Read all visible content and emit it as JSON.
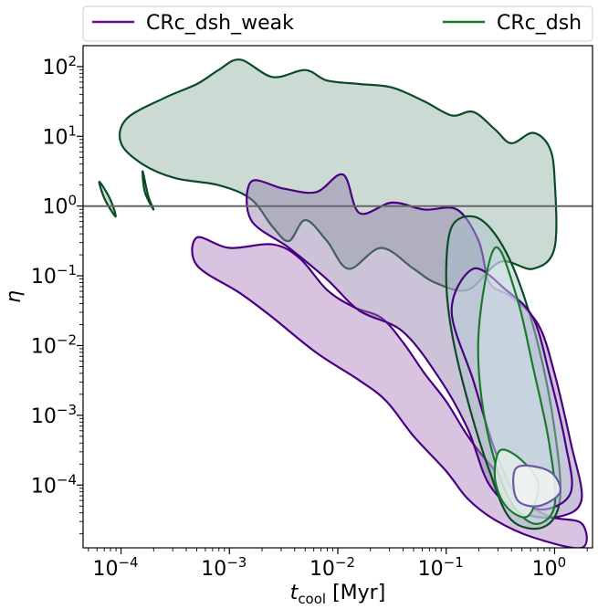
{
  "chart_data": {
    "type": "contour",
    "xlabel": {
      "base": "t",
      "sub": "cool",
      "unit": " [Myr]"
    },
    "ylabel": "η",
    "xscale": "log",
    "yscale": "log",
    "xlim_log10": [
      -4.35,
      0.35
    ],
    "ylim_log10": [
      -4.9,
      2.3
    ],
    "x_ticks": [
      {
        "exp": "−4",
        "value_log10": -4
      },
      {
        "exp": "−3",
        "value_log10": -3
      },
      {
        "exp": "−2",
        "value_log10": -2
      },
      {
        "exp": "−1",
        "value_log10": -1
      },
      {
        "exp": "0",
        "value_log10": 0
      }
    ],
    "y_ticks": [
      {
        "exp": "−4",
        "value_log10": -4
      },
      {
        "exp": "−3",
        "value_log10": -3
      },
      {
        "exp": "−2",
        "value_log10": -2
      },
      {
        "exp": "−1",
        "value_log10": -1
      },
      {
        "exp": "0",
        "value_log10": 0
      },
      {
        "exp": "1",
        "value_log10": 1
      },
      {
        "exp": "2",
        "value_log10": 2
      }
    ],
    "tick_base": "10",
    "reference_line": {
      "y_log10": 0,
      "color": "#666666"
    },
    "legend": {
      "placement": "top, outside plot",
      "columns": 2
    },
    "series": [
      {
        "name": "CRc_dsh_weak",
        "color": "#6a0d83",
        "fill": "#b891c9",
        "line": "#4b0082"
      },
      {
        "name": "CRc_dsh",
        "color": "#1b7a2a",
        "fill": "#98b8a8",
        "line": "#0b4a26"
      }
    ],
    "contours": {
      "green_outer": [
        [
          -3.95,
          1.25
        ],
        [
          -3.6,
          1.55
        ],
        [
          -3.3,
          1.75
        ],
        [
          -3.1,
          1.95
        ],
        [
          -2.9,
          2.1
        ],
        [
          -2.6,
          1.85
        ],
        [
          -2.3,
          1.95
        ],
        [
          -2.1,
          1.8
        ],
        [
          -1.8,
          1.75
        ],
        [
          -1.5,
          1.7
        ],
        [
          -1.2,
          1.5
        ],
        [
          -0.95,
          1.3
        ],
        [
          -0.75,
          1.35
        ],
        [
          -0.55,
          1.1
        ],
        [
          -0.4,
          0.9
        ],
        [
          -0.2,
          1.05
        ],
        [
          -0.05,
          0.85
        ],
        [
          0.0,
          0.4
        ],
        [
          0.0,
          -0.6
        ],
        [
          -0.2,
          -0.9
        ],
        [
          -0.5,
          -0.8
        ],
        [
          -0.8,
          -1.2
        ],
        [
          -1.1,
          -1.1
        ],
        [
          -1.3,
          -0.9
        ],
        [
          -1.6,
          -0.6
        ],
        [
          -1.9,
          -0.9
        ],
        [
          -2.1,
          -0.5
        ],
        [
          -2.3,
          -0.2
        ],
        [
          -2.45,
          -0.5
        ],
        [
          -2.6,
          -0.3
        ],
        [
          -2.8,
          0.1
        ],
        [
          -3.1,
          0.3
        ],
        [
          -3.5,
          0.4
        ],
        [
          -3.8,
          0.6
        ],
        [
          -4.0,
          0.9
        ]
      ],
      "green_small": [
        [
          -4.2,
          0.35
        ],
        [
          -4.1,
          0.1
        ],
        [
          -4.05,
          -0.15
        ],
        [
          -4.15,
          0.1
        ]
      ],
      "green_small2": [
        [
          -3.8,
          0.5
        ],
        [
          -3.75,
          0.15
        ],
        [
          -3.7,
          -0.05
        ],
        [
          -3.78,
          0.2
        ]
      ],
      "green_mid": [
        [
          -0.95,
          -0.3
        ],
        [
          -0.75,
          -0.15
        ],
        [
          -0.55,
          -0.4
        ],
        [
          -0.35,
          -1.0
        ],
        [
          -0.15,
          -2.0
        ],
        [
          0.0,
          -3.2
        ],
        [
          0.05,
          -4.2
        ],
        [
          -0.1,
          -4.6
        ],
        [
          -0.4,
          -4.5
        ],
        [
          -0.6,
          -3.8
        ],
        [
          -0.8,
          -2.8
        ],
        [
          -0.95,
          -1.8
        ],
        [
          -1.0,
          -1.0
        ]
      ],
      "green_inner": [
        [
          -0.55,
          -0.6
        ],
        [
          -0.35,
          -1.3
        ],
        [
          -0.2,
          -2.3
        ],
        [
          -0.05,
          -3.4
        ],
        [
          0.0,
          -4.3
        ],
        [
          -0.2,
          -4.55
        ],
        [
          -0.45,
          -4.1
        ],
        [
          -0.65,
          -3.0
        ],
        [
          -0.7,
          -1.8
        ]
      ],
      "green_core": [
        [
          -0.5,
          -3.5
        ],
        [
          -0.3,
          -3.65
        ],
        [
          -0.15,
          -4.0
        ],
        [
          -0.25,
          -4.45
        ],
        [
          -0.45,
          -4.3
        ],
        [
          -0.55,
          -3.9
        ]
      ],
      "purple_outer": [
        [
          -3.3,
          -0.45
        ],
        [
          -3.0,
          -0.6
        ],
        [
          -2.6,
          -0.55
        ],
        [
          -2.35,
          -0.75
        ],
        [
          -2.1,
          -1.2
        ],
        [
          -1.85,
          -1.45
        ],
        [
          -1.6,
          -1.6
        ],
        [
          -1.4,
          -1.95
        ],
        [
          -1.2,
          -2.4
        ],
        [
          -1.0,
          -2.8
        ],
        [
          -0.8,
          -3.3
        ],
        [
          -0.6,
          -3.7
        ],
        [
          -0.3,
          -4.2
        ],
        [
          -0.05,
          -4.45
        ],
        [
          0.25,
          -4.55
        ],
        [
          0.25,
          -4.9
        ],
        [
          -0.2,
          -4.75
        ],
        [
          -0.55,
          -4.5
        ],
        [
          -0.8,
          -4.2
        ],
        [
          -1.0,
          -3.8
        ],
        [
          -1.3,
          -3.3
        ],
        [
          -1.55,
          -2.8
        ],
        [
          -1.8,
          -2.5
        ],
        [
          -2.2,
          -2.1
        ],
        [
          -2.6,
          -1.6
        ],
        [
          -2.9,
          -1.25
        ],
        [
          -3.3,
          -0.85
        ]
      ],
      "purple_mid": [
        [
          -2.8,
          0.35
        ],
        [
          -2.5,
          0.25
        ],
        [
          -2.2,
          0.2
        ],
        [
          -1.95,
          0.45
        ],
        [
          -1.8,
          -0.1
        ],
        [
          -1.5,
          0.05
        ],
        [
          -1.2,
          -0.05
        ],
        [
          -0.9,
          -0.05
        ],
        [
          -0.7,
          -0.5
        ],
        [
          -0.6,
          -1.1
        ],
        [
          -0.4,
          -1.3
        ],
        [
          -0.15,
          -1.7
        ],
        [
          0.0,
          -2.4
        ],
        [
          0.15,
          -3.4
        ],
        [
          0.25,
          -4.2
        ],
        [
          0.05,
          -4.45
        ],
        [
          -0.3,
          -4.4
        ],
        [
          -0.6,
          -4.0
        ],
        [
          -0.8,
          -3.2
        ],
        [
          -1.05,
          -2.5
        ],
        [
          -1.4,
          -1.8
        ],
        [
          -1.8,
          -1.5
        ],
        [
          -2.1,
          -1.05
        ],
        [
          -2.45,
          -0.6
        ],
        [
          -2.8,
          -0.2
        ]
      ],
      "purple_inner": [
        [
          -0.75,
          -0.9
        ],
        [
          -0.45,
          -1.2
        ],
        [
          -0.2,
          -1.6
        ],
        [
          -0.05,
          -2.4
        ],
        [
          0.1,
          -3.4
        ],
        [
          0.15,
          -4.1
        ],
        [
          -0.1,
          -4.35
        ],
        [
          -0.35,
          -4.15
        ],
        [
          -0.55,
          -3.5
        ],
        [
          -0.75,
          -2.5
        ],
        [
          -0.95,
          -1.5
        ]
      ],
      "purple_core": [
        [
          -0.35,
          -3.75
        ],
        [
          -0.05,
          -3.8
        ],
        [
          0.05,
          -4.1
        ],
        [
          -0.15,
          -4.3
        ],
        [
          -0.35,
          -4.2
        ]
      ]
    }
  },
  "legend_labels": {
    "weak": "CRc_dsh_weak",
    "dsh": "CRc_dsh"
  }
}
